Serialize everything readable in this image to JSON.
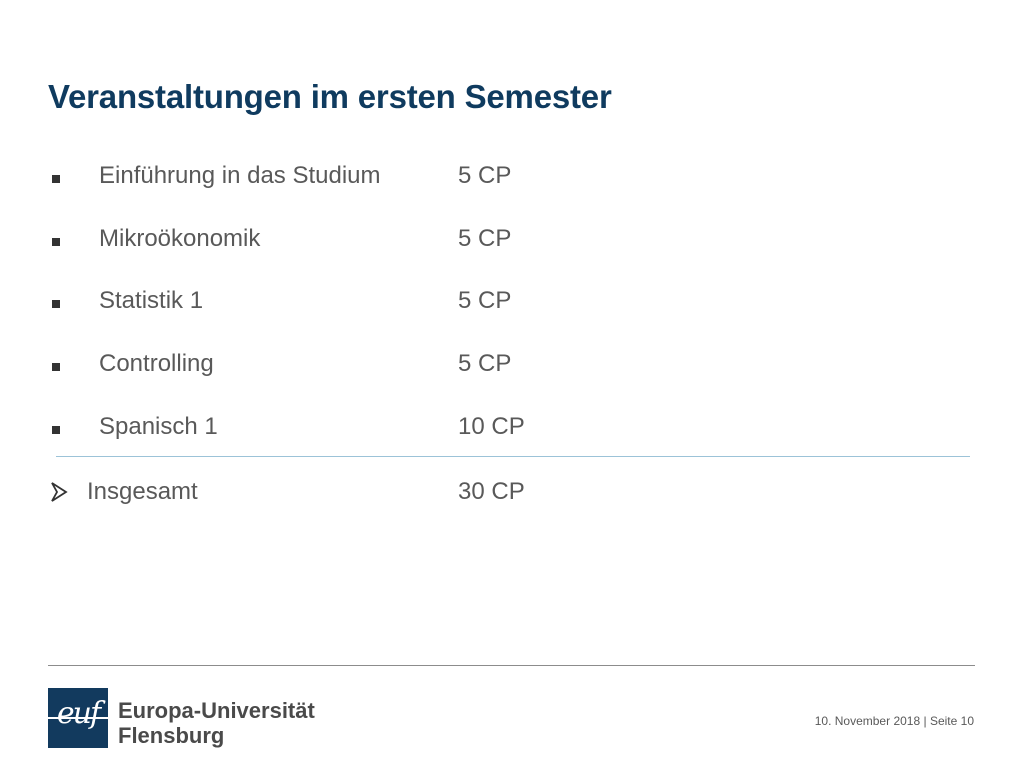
{
  "slide": {
    "title": "Veranstaltungen im ersten Semester"
  },
  "courses": [
    {
      "name": "Einführung in das Studium",
      "credits": "5 CP",
      "icon": "square-bullet-icon"
    },
    {
      "name": "Mikroökonomik",
      "credits": "5 CP",
      "icon": "square-bullet-icon"
    },
    {
      "name": "Statistik 1",
      "credits": "5 CP",
      "icon": "square-bullet-icon"
    },
    {
      "name": "Controlling",
      "credits": "5 CP",
      "icon": "square-bullet-icon"
    },
    {
      "name": "Spanisch 1",
      "credits": "10 CP",
      "icon": "square-bullet-icon"
    }
  ],
  "total": {
    "label": "Insgesamt",
    "credits": "30 CP",
    "icon": "arrow-bullet-icon"
  },
  "footer": {
    "logo_mark": "euf",
    "university_line1": "Europa-Universität",
    "university_line2": "Flensburg",
    "date": "10. November 2018",
    "separator": "|",
    "page_label": "Seite 10"
  },
  "colors": {
    "title": "#0f3b5f",
    "body_text": "#595959",
    "logo_blue": "#123a5e",
    "divider_blue": "#9cc3d8",
    "footer_rule": "#8c8c8c"
  }
}
